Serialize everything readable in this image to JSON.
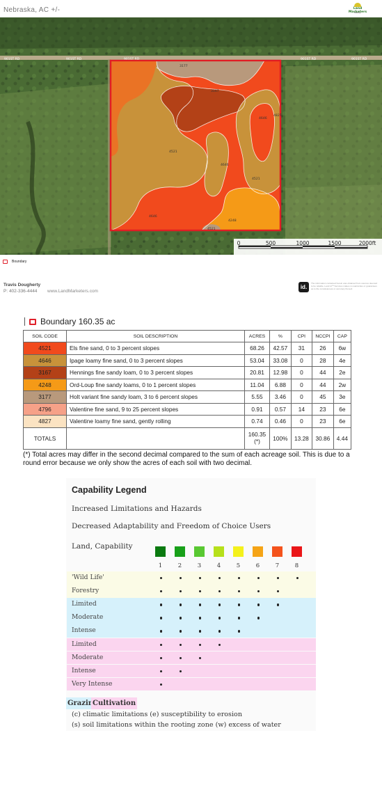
{
  "header": {
    "title": "Nebraska, AC +/-"
  },
  "logo": {
    "name": "Land Marketers",
    "sub": "Realty"
  },
  "map": {
    "road_labels": [
      "901ST RD",
      "901ST RD",
      "901ST RD",
      "901ST RD",
      "901ST RD"
    ],
    "soil_labels": [
      "3177",
      "3167",
      "4827",
      "4646",
      "4521",
      "4646",
      "4521",
      "4646",
      "4248",
      "4521"
    ],
    "scale_labels": [
      "0",
      "500",
      "1000",
      "1500",
      "2000ft"
    ]
  },
  "legend": {
    "boundary_label": "Boundary"
  },
  "agent": {
    "name": "Travis Dougherty",
    "phone": "P: 402-336-4444",
    "website": "www.LandMarketers.com"
  },
  "disclaimer": {
    "badge": "id.",
    "text": "The information contained herein was obtained from sources deemed to be reliable. Land id™ Services makes no warranties or guarantees as to the completeness or accuracy thereof."
  },
  "boundary_title": "Boundary 160.35 ac",
  "soil_table": {
    "headers": [
      "SOIL CODE",
      "SOIL DESCRIPTION",
      "ACRES",
      "%",
      "CPI",
      "NCCPI",
      "CAP"
    ],
    "rows": [
      {
        "code": "4521",
        "color": "#f14a1d",
        "desc": "Els fine sand, 0 to 3 percent slopes",
        "acres": "68.26",
        "pct": "42.57",
        "cpi": "31",
        "nccpi": "26",
        "cap": "6w"
      },
      {
        "code": "4646",
        "color": "#c8923a",
        "desc": "Ipage loamy fine sand, 0 to 3 percent slopes",
        "acres": "53.04",
        "pct": "33.08",
        "cpi": "0",
        "nccpi": "28",
        "cap": "4e"
      },
      {
        "code": "3167",
        "color": "#b34117",
        "desc": "Hennings fine sandy loam, 0 to 3 percent slopes",
        "acres": "20.81",
        "pct": "12.98",
        "cpi": "0",
        "nccpi": "44",
        "cap": "2e"
      },
      {
        "code": "4248",
        "color": "#f59a17",
        "desc": "Ord-Loup fine sandy loams, 0 to 1 percent slopes",
        "acres": "11.04",
        "pct": "6.88",
        "cpi": "0",
        "nccpi": "44",
        "cap": "2w"
      },
      {
        "code": "3177",
        "color": "#b8997c",
        "desc": "Holt variant fine sandy loam, 3 to 6 percent slopes",
        "acres": "5.55",
        "pct": "3.46",
        "cpi": "0",
        "nccpi": "45",
        "cap": "3e"
      },
      {
        "code": "4796",
        "color": "#f6a188",
        "desc": "Valentine fine sand, 9 to 25 percent slopes",
        "acres": "0.91",
        "pct": "0.57",
        "cpi": "14",
        "nccpi": "23",
        "cap": "6e"
      },
      {
        "code": "4827",
        "color": "#fbe3c2",
        "desc": "Valentine loamy fine sand, gently rolling",
        "acres": "0.74",
        "pct": "0.46",
        "cpi": "0",
        "nccpi": "23",
        "cap": "6e"
      }
    ],
    "totals": {
      "label": "TOTALS",
      "acres": "160.35(*)",
      "pct": "100%",
      "cpi": "13.28",
      "nccpi": "30.86",
      "cap": "4.44"
    }
  },
  "footnote": "(*) Total acres may differ in the second decimal compared to the sum of each acreage soil. This is due to a round error because we only show the acres of each soil with two decimal.",
  "capability": {
    "title": "Capability Legend",
    "line1": "Increased Limitations and Hazards",
    "line2": "Decreased Adaptability and Freedom of Choice Users",
    "land_label": "Land, Capability",
    "class_colors": [
      "#0a7a10",
      "#18a019",
      "#59c832",
      "#b6e01b",
      "#f4f11c",
      "#f5a416",
      "#f4531c",
      "#ea1618"
    ],
    "class_numbers": [
      "1",
      "2",
      "3",
      "4",
      "5",
      "6",
      "7",
      "8"
    ],
    "rows": [
      {
        "label": "'Wild Life'",
        "bg": "#fbfbe6",
        "classes": 8
      },
      {
        "label": "Forestry",
        "bg": "#fbfbe6",
        "classes": 7
      },
      {
        "label": "Limited",
        "bg": "#d6f1fb",
        "classes": 7
      },
      {
        "label": "Moderate",
        "bg": "#d6f1fb",
        "classes": 6
      },
      {
        "label": "Intense",
        "bg": "#d6f1fb",
        "classes": 5
      },
      {
        "label": "Limited",
        "bg": "#fbd5ef",
        "classes": 4
      },
      {
        "label": "Moderate",
        "bg": "#fbd5ef",
        "classes": 3
      },
      {
        "label": "Intense",
        "bg": "#fbd5ef",
        "classes": 2
      },
      {
        "label": "Very Intense",
        "bg": "#fbd5ef",
        "classes": 1
      }
    ],
    "grazing_label": "Grazing",
    "cultivation_label": "Cultivation",
    "note1": "(c) climatic limitations (e) susceptibility to erosion",
    "note2": "(s) soil limitations within the rooting zone (w) excess of water"
  }
}
